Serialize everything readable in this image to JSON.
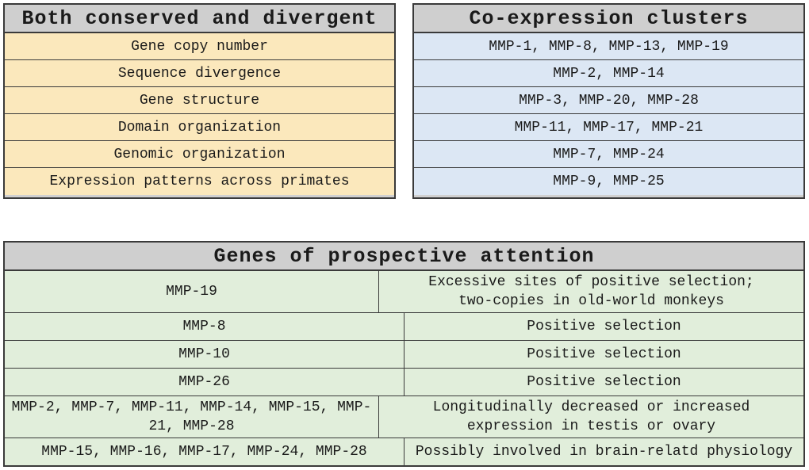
{
  "conserved": {
    "title": "Both conserved and divergent",
    "items": [
      "Gene copy number",
      "Sequence divergence",
      "Gene structure",
      "Domain organization",
      "Genomic organization",
      "Expression patterns across primates"
    ]
  },
  "clusters": {
    "title": "Co-expression clusters",
    "items": [
      "MMP-1, MMP-8, MMP-13, MMP-19",
      "MMP-2, MMP-14",
      "MMP-3, MMP-20, MMP-28",
      "MMP-11, MMP-17, MMP-21",
      "MMP-7, MMP-24",
      "MMP-9, MMP-25"
    ]
  },
  "genes": {
    "title": "Genes of prospective attention",
    "rows": [
      {
        "gene": "MMP-19",
        "note": "Excessive sites of positive selection; two-copies in old-world monkeys"
      },
      {
        "gene": "MMP-8",
        "note": "Positive selection"
      },
      {
        "gene": "MMP-10",
        "note": "Positive selection"
      },
      {
        "gene": "MMP-26",
        "note": "Positive selection"
      },
      {
        "gene": "MMP-2, MMP-7, MMP-11, MMP-14, MMP-15, MMP-21, MMP-28",
        "note": "Longitudinally decreased or increased expression in testis or ovary"
      },
      {
        "gene": "MMP-15, MMP-16, MMP-17, MMP-24, MMP-28",
        "note": "Possibly involved in brain-relatd physiology"
      }
    ]
  }
}
